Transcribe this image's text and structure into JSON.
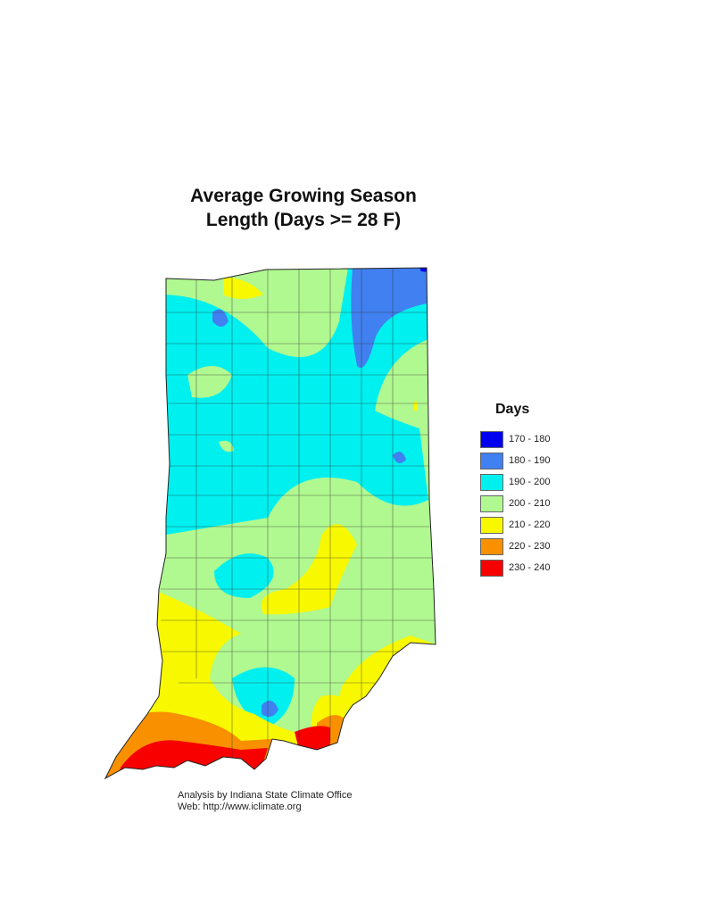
{
  "title_line1": "Average Growing Season",
  "title_line2": "Length (Days >= 28 F)",
  "legend": {
    "title": "Days",
    "items": [
      {
        "label": "170 - 180",
        "color": "#0000f0"
      },
      {
        "label": "180 - 190",
        "color": "#4080f0"
      },
      {
        "label": "190 - 200",
        "color": "#00f0f0"
      },
      {
        "label": "200 - 210",
        "color": "#b0f890"
      },
      {
        "label": "210 - 220",
        "color": "#f8f800"
      },
      {
        "label": "220 - 230",
        "color": "#f89000"
      },
      {
        "label": "230 - 240",
        "color": "#f80000"
      }
    ]
  },
  "footer": {
    "line1": "Analysis by Indiana State Climate Office",
    "line2": "Web:   http://www.iclimate.org"
  }
}
